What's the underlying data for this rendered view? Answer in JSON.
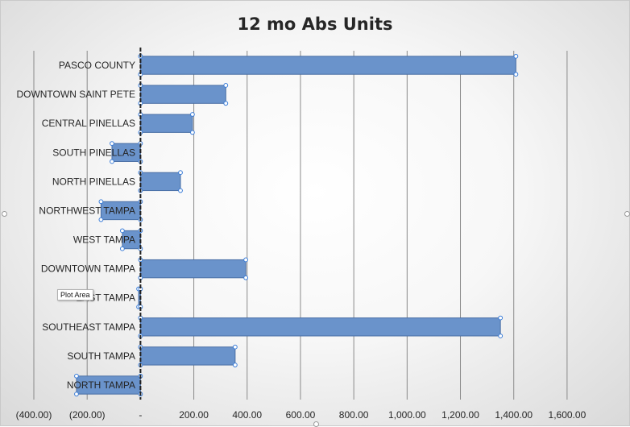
{
  "chart_data": {
    "type": "bar",
    "orientation": "horizontal",
    "title": "12 mo Abs Units",
    "categories": [
      "PASCO COUNTY",
      "DOWNTOWN SAINT PETE",
      "CENTRAL PINELLAS",
      "SOUTH PINELLAS",
      "NORTH PINELLAS",
      "NORTHWEST TAMPA",
      "WEST TAMPA",
      "DOWNTOWN TAMPA",
      "EAST TAMPA",
      "SOUTHEAST TAMPA",
      "SOUTH TAMPA",
      "NORTH TAMPA"
    ],
    "values": [
      1408,
      320,
      195,
      -107,
      150,
      -148,
      -68,
      395,
      -7,
      1350,
      355,
      -240
    ],
    "xlim": [
      -400,
      1700
    ],
    "tick_values": [
      -400,
      -200,
      0,
      200,
      400,
      600,
      800,
      1000,
      1200,
      1400,
      1600
    ],
    "tick_labels": [
      "(400.00)",
      "(200.00)",
      "-",
      "200.00",
      "400.00",
      "600.00",
      "800.00",
      "1,000.00",
      "1,200.00",
      "1,400.00",
      "1,600.00"
    ],
    "grid": true,
    "bar_color": "#6a93cb"
  },
  "tooltip": {
    "text": "Plot Area"
  }
}
